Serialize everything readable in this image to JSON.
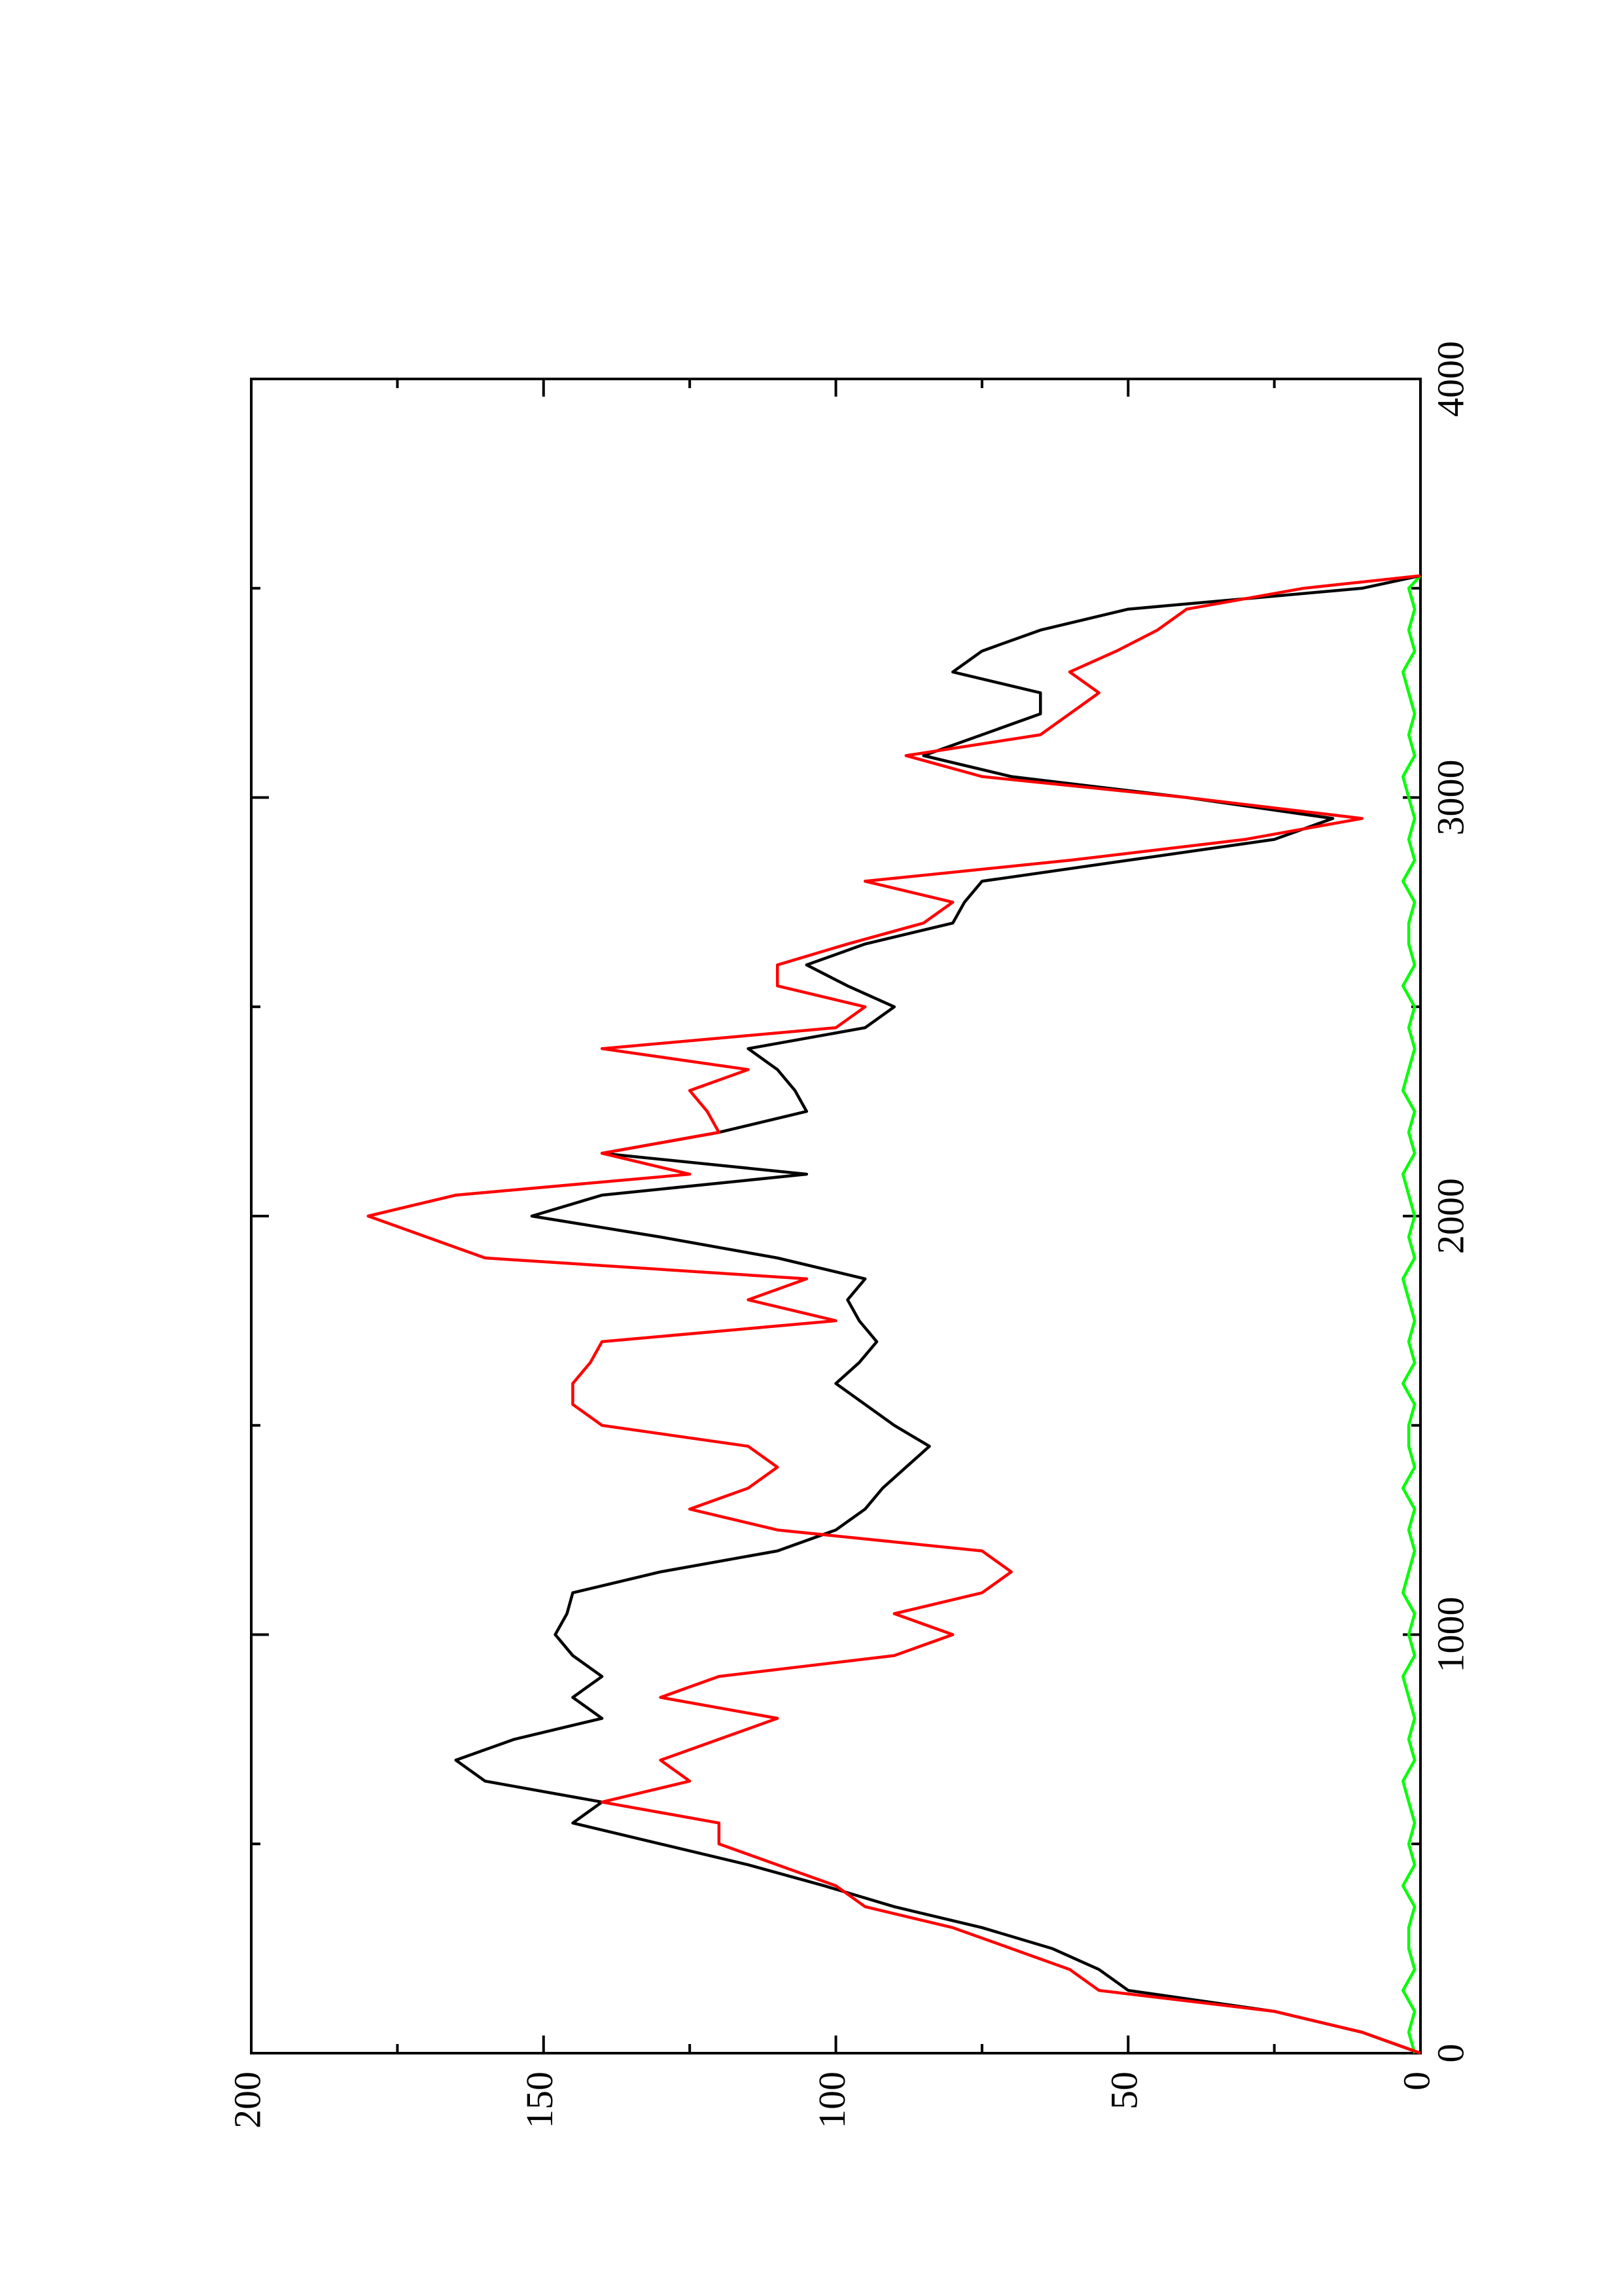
{
  "chart_data": {
    "type": "line",
    "x": [
      0,
      50,
      100,
      150,
      200,
      250,
      300,
      350,
      400,
      450,
      500,
      550,
      600,
      650,
      700,
      750,
      800,
      850,
      900,
      950,
      1000,
      1050,
      1100,
      1150,
      1200,
      1250,
      1300,
      1350,
      1400,
      1450,
      1500,
      1550,
      1600,
      1650,
      1700,
      1750,
      1800,
      1850,
      1900,
      1950,
      2000,
      2050,
      2100,
      2150,
      2200,
      2250,
      2300,
      2350,
      2400,
      2450,
      2500,
      2550,
      2600,
      2650,
      2700,
      2750,
      2800,
      2850,
      2900,
      2950,
      3000,
      3050,
      3100,
      3150,
      3200,
      3250,
      3300,
      3350,
      3400,
      3450,
      3500,
      3530
    ],
    "series": [
      {
        "color": "#000000",
        "values": [
          0,
          10,
          25,
          50,
          55,
          63,
          75,
          90,
          102,
          115,
          130,
          145,
          140,
          160,
          165,
          155,
          140,
          145,
          140,
          145,
          148,
          146,
          145,
          130,
          110,
          100,
          95,
          92,
          88,
          84,
          90,
          95,
          100,
          96,
          93,
          96,
          98,
          95,
          110,
          130,
          152,
          140,
          105,
          140,
          120,
          105,
          107,
          110,
          115,
          95,
          90,
          98,
          105,
          95,
          80,
          78,
          75,
          50,
          25,
          15,
          40,
          70,
          85,
          75,
          65,
          65,
          80,
          75,
          65,
          50,
          10,
          0
        ]
      },
      {
        "color": "#ff0000",
        "values": [
          0,
          10,
          25,
          55,
          60,
          70,
          80,
          95,
          100,
          110,
          120,
          120,
          140,
          125,
          130,
          120,
          110,
          130,
          120,
          90,
          80,
          90,
          75,
          70,
          75,
          110,
          125,
          115,
          110,
          115,
          140,
          145,
          145,
          142,
          140,
          100,
          115,
          105,
          160,
          170,
          180,
          165,
          125,
          140,
          120,
          122,
          125,
          115,
          140,
          100,
          95,
          110,
          110,
          98,
          85,
          80,
          95,
          60,
          30,
          10,
          40,
          75,
          88,
          65,
          60,
          55,
          60,
          52,
          45,
          40,
          20,
          0
        ]
      },
      {
        "color": "#00ff00",
        "values": [
          1,
          2,
          1,
          3,
          1,
          2,
          2,
          1,
          3,
          1,
          2,
          1,
          2,
          3,
          1,
          2,
          1,
          2,
          3,
          1,
          2,
          1,
          3,
          2,
          1,
          2,
          1,
          3,
          1,
          2,
          2,
          1,
          3,
          1,
          2,
          1,
          2,
          3,
          1,
          2,
          1,
          2,
          3,
          1,
          2,
          1,
          3,
          2,
          1,
          2,
          1,
          3,
          1,
          2,
          2,
          1,
          3,
          1,
          2,
          1,
          2,
          3,
          1,
          2,
          1,
          2,
          3,
          1,
          2,
          1,
          2,
          0
        ]
      }
    ],
    "xlim": [
      0,
      4000
    ],
    "xticks": [
      0,
      1000,
      2000,
      3000,
      4000
    ],
    "xticks_minor": [
      500,
      1500,
      2500,
      3500
    ],
    "ylim": [
      0,
      200
    ],
    "yticks": [
      0,
      50,
      100,
      150,
      200
    ],
    "yticks_minor": [
      25,
      75,
      125,
      175
    ],
    "rotated": true
  }
}
